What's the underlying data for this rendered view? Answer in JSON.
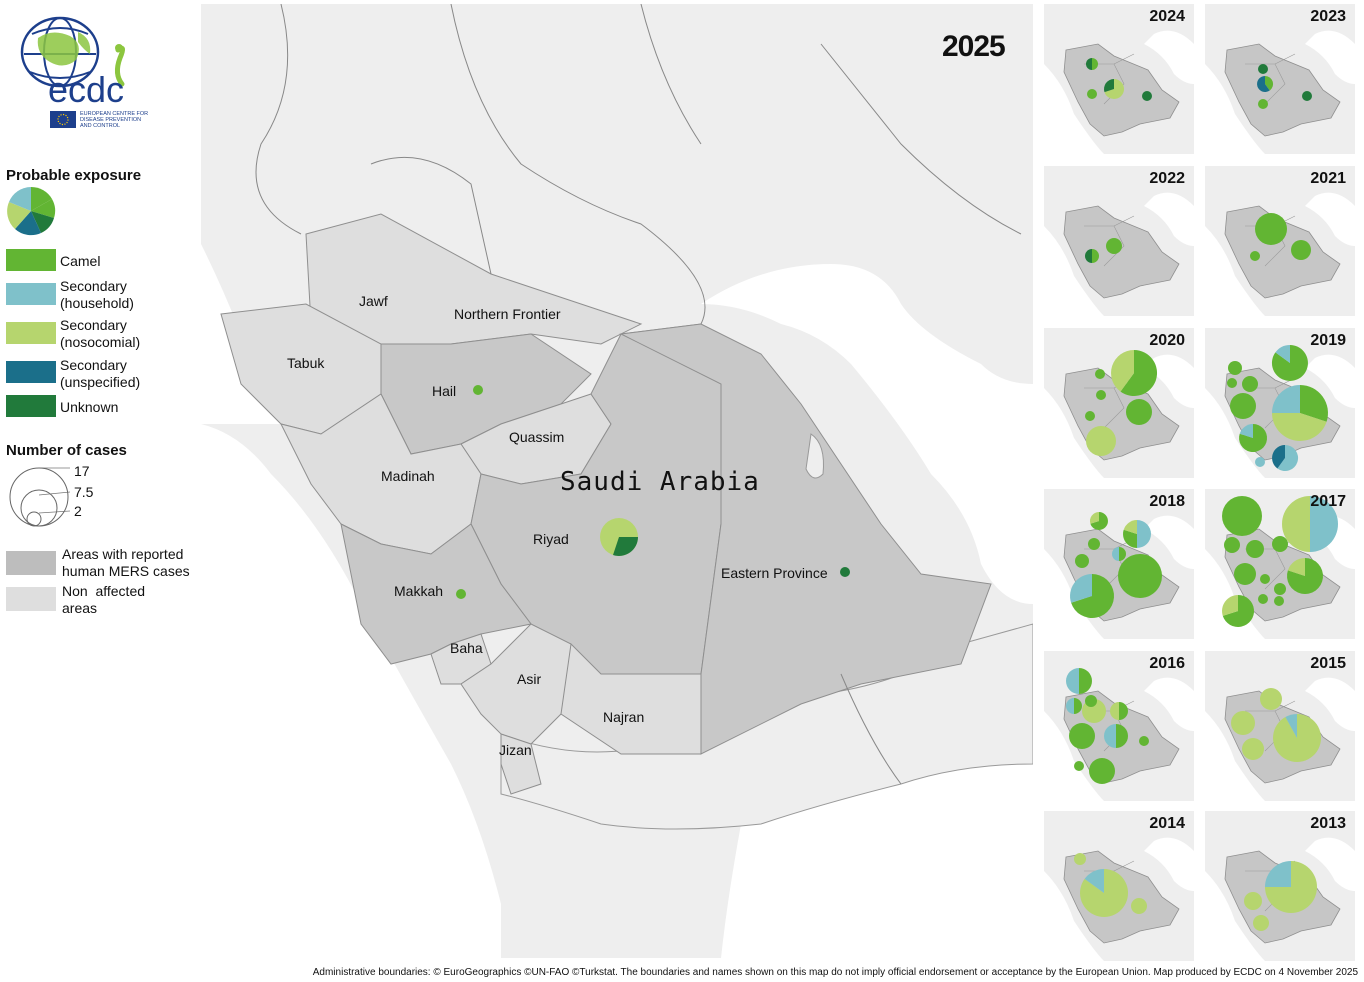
{
  "legend": {
    "exposure_title": "Probable exposure",
    "categories": [
      {
        "label": "Camel",
        "color": "#62b533"
      },
      {
        "label": "Secondary\n(household)",
        "color": "#7fc1ca"
      },
      {
        "label": "Secondary\n(nosocomial)",
        "color": "#b6d56e"
      },
      {
        "label": "Secondary\n(unspecified)",
        "color": "#1b6f8a"
      },
      {
        "label": "Unknown",
        "color": "#217a3b"
      }
    ],
    "cases_title": "Number of cases",
    "size_values": [
      "17",
      "7.5",
      "2"
    ],
    "areas": [
      {
        "label": "Areas with reported\nhuman MERS cases",
        "color": "#bdbdbd"
      },
      {
        "label": "Non  affected\nareas",
        "color": "#dedede"
      }
    ]
  },
  "logo": {
    "name": "ecdc",
    "subtitle": "EUROPEAN CENTRE FOR\nDISEASE PREVENTION\nAND CONTROL"
  },
  "main_map": {
    "year": "2025",
    "country_label": "Saudi Arabia",
    "regions": [
      "Jawf",
      "Northern Frontier",
      "Tabuk",
      "Hail",
      "Quassim",
      "Madinah",
      "Riyad",
      "Eastern Province",
      "Makkah",
      "Baha",
      "Asir",
      "Najran",
      "Jizan"
    ],
    "affected_regions": [
      "Hail",
      "Riyad",
      "Eastern Province",
      "Makkah"
    ],
    "points": [
      {
        "region": "Hail",
        "cases": 1,
        "exposure": {
          "Camel": 1
        }
      },
      {
        "region": "Makkah",
        "cases": 1,
        "exposure": {
          "Camel": 1
        }
      },
      {
        "region": "Eastern Province",
        "cases": 1,
        "exposure": {
          "Unknown": 1
        }
      },
      {
        "region": "Riyad",
        "cases": 9,
        "exposure": {
          "Secondary (nosocomial)": 0.7,
          "Unknown": 0.3
        }
      }
    ]
  },
  "mini_years": [
    "2024",
    "2023",
    "2022",
    "2021",
    "2020",
    "2019",
    "2018",
    "2017",
    "2016",
    "2015",
    "2014",
    "2013"
  ],
  "footer": "Administrative boundaries: © EuroGeographics ©UN-FAO ©Turkstat. The boundaries and names shown on this map do not imply official endorsement or acceptance by the European Union. Map produced by ECDC on 4 November 2025"
}
